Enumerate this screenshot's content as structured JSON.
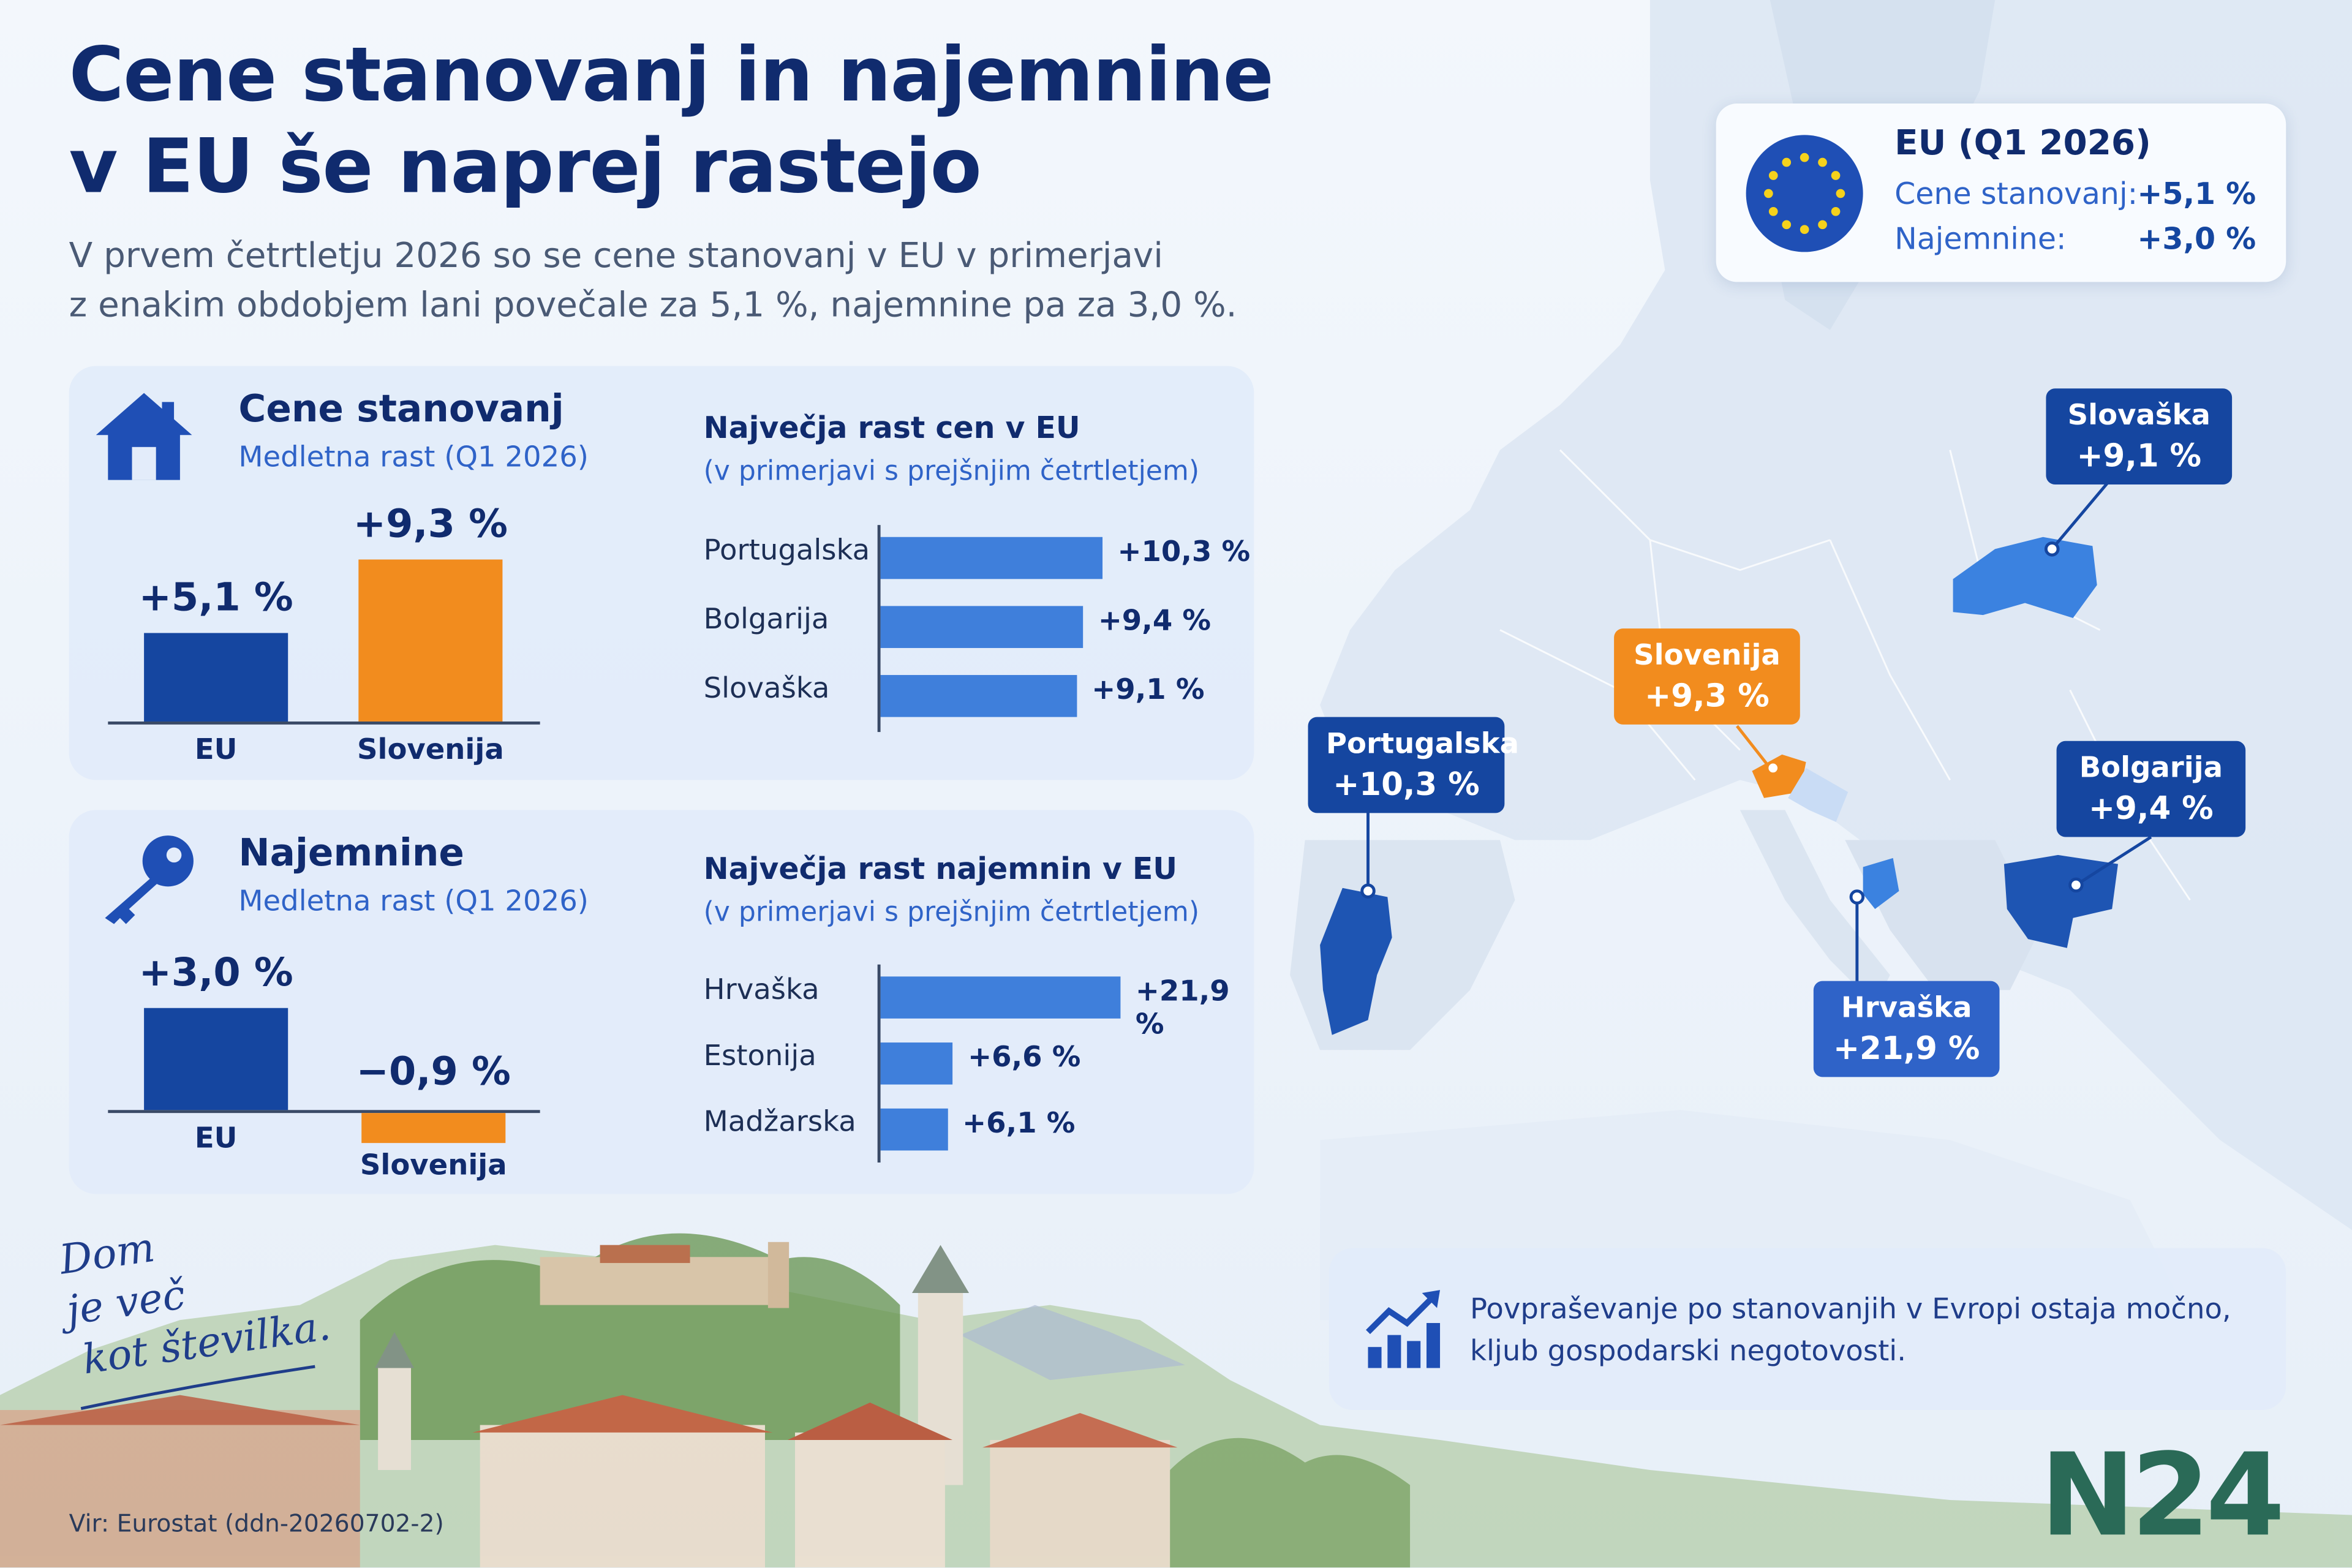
{
  "title": {
    "line1": "Cene stanovanj in najemnine",
    "line2": "v EU še naprej rastejo"
  },
  "subtitle": {
    "line1": "V prvem četrtletju 2026 so se cene stanovanj v EU v primerjavi",
    "line2": "z enakim obdobjem lani povečale za 5,1 %, najemnine pa za 3,0 %."
  },
  "housing_panel": {
    "icon": "house-icon",
    "heading": "Cene stanovanj",
    "sub": "Medletna rast (Q1 2026)",
    "top_title": "Največja rast cen v EU",
    "top_sub": "(v primerjavi s prejšnjim četrtletjem)"
  },
  "rent_panel": {
    "icon": "key-icon",
    "heading": "Najemnine",
    "sub": "Medletna rast (Q1 2026)",
    "top_title": "Največja rast najemnin v EU",
    "top_sub": "(v primerjavi s prejšnjim četrtletjem)"
  },
  "eu_card": {
    "icon": "eu-flag-icon",
    "title": "EU (Q1 2026)",
    "row1_label": "Cene stanovanj:",
    "row1_value": "+5,1 %",
    "row2_label": "Najemnine:",
    "row2_value": "+3,0 %"
  },
  "map_callouts": {
    "slovaska": {
      "name": "Slovaška",
      "value": "+9,1 %"
    },
    "slovenija": {
      "name": "Slovenija",
      "value": "+9,3 %"
    },
    "portugalska": {
      "name": "Portugalska",
      "value": "+10,3 %"
    },
    "bolgarija": {
      "name": "Bolgarija",
      "value": "+9,4 %"
    },
    "hrvaska": {
      "name": "Hrvaška",
      "value": "+21,9 %"
    }
  },
  "note": {
    "icon": "growth-chart-icon",
    "line1": "Povpraševanje po stanovanjih v Evropi ostaja močno,",
    "line2": "kljub gospodarski negotovosti."
  },
  "signature": {
    "line1": "Dom",
    "line2": "je več",
    "line3": "kot številka."
  },
  "source": "Vir: Eurostat (ddn-20260702-2)",
  "logo": "N24",
  "colors": {
    "navy": "#1546a0",
    "orange": "#f28c1e",
    "bar_blue": "#3f7fdb",
    "title": "#102b6e"
  },
  "chart_data": [
    {
      "type": "bar",
      "title": "Cene stanovanj",
      "subtitle": "Medletna rast (Q1 2026)",
      "categories": [
        "EU",
        "Slovenija"
      ],
      "values": [
        5.1,
        9.3
      ],
      "labels": [
        "+5,1 %",
        "+9,3 %"
      ],
      "unit": "%"
    },
    {
      "type": "bar",
      "orientation": "horizontal",
      "title": "Največja rast cen v EU",
      "subtitle": "(v primerjavi s prejšnjim četrtletjem)",
      "categories": [
        "Portugalska",
        "Bolgarija",
        "Slovaška"
      ],
      "values": [
        10.3,
        9.4,
        9.1
      ],
      "labels": [
        "+10,3 %",
        "+9,4 %",
        "+9,1 %"
      ],
      "unit": "%"
    },
    {
      "type": "bar",
      "title": "Najemnine",
      "subtitle": "Medletna rast (Q1 2026)",
      "categories": [
        "EU",
        "Slovenija"
      ],
      "values": [
        3.0,
        -0.9
      ],
      "labels": [
        "+3,0 %",
        "−0,9 %"
      ],
      "unit": "%"
    },
    {
      "type": "bar",
      "orientation": "horizontal",
      "title": "Največja rast najemnin v EU",
      "subtitle": "(v primerjavi s prejšnjim četrtletjem)",
      "categories": [
        "Hrvaška",
        "Estonija",
        "Madžarska"
      ],
      "values": [
        21.9,
        6.6,
        6.1
      ],
      "labels": [
        "+21,9 %",
        "+6,6 %",
        "+6,1 %"
      ],
      "unit": "%"
    }
  ]
}
